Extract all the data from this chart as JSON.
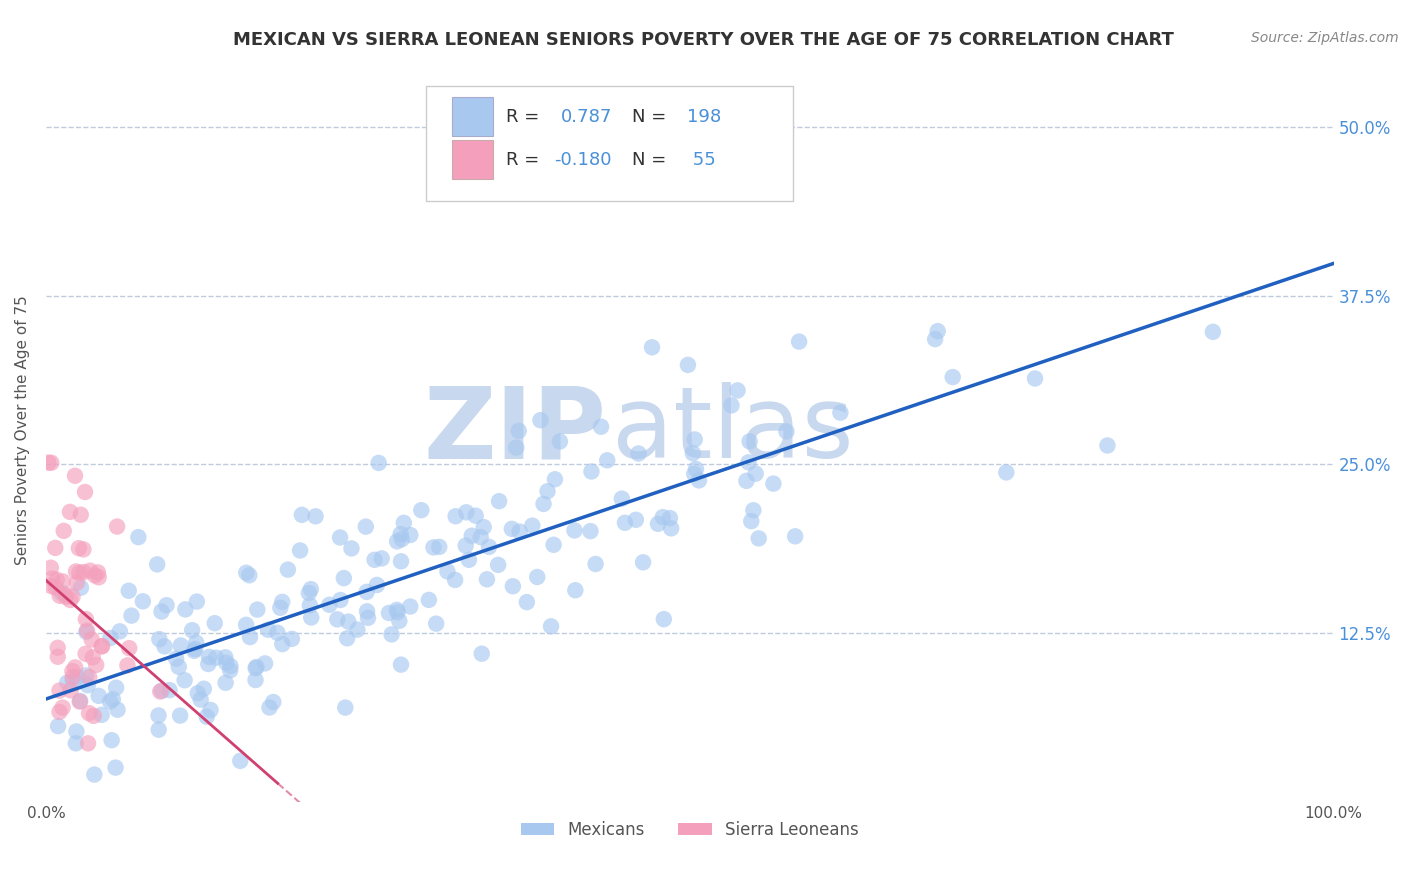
{
  "title": "MEXICAN VS SIERRA LEONEAN SENIORS POVERTY OVER THE AGE OF 75 CORRELATION CHART",
  "source": "Source: ZipAtlas.com",
  "ylabel": "Seniors Poverty Over the Age of 75",
  "xlim": [
    0,
    1.0
  ],
  "ylim": [
    0,
    0.55
  ],
  "yticks": [
    0.0,
    0.125,
    0.25,
    0.375,
    0.5
  ],
  "ytick_labels": [
    "",
    "12.5%",
    "25.0%",
    "37.5%",
    "50.0%"
  ],
  "xticks": [
    0.0,
    0.25,
    0.5,
    0.75,
    1.0
  ],
  "xtick_labels": [
    "0.0%",
    "",
    "",
    "",
    "100.0%"
  ],
  "mexican_R": 0.787,
  "mexican_N": 198,
  "sierraleonean_R": -0.18,
  "sierraleonean_N": 55,
  "mexican_color": "#A8C8F0",
  "sierraleonean_color": "#F4A0BC",
  "trend_mexican_color": "#2060C0",
  "trend_sierraleonean_color": "#D04070",
  "background_color": "#FFFFFF",
  "watermark_zip": "ZIP",
  "watermark_atlas": "atlas",
  "watermark_color": "#C8D8EE",
  "title_color": "#333333",
  "axis_label_color": "#555555",
  "tick_value_color": "#4A90D9",
  "grid_color": "#C0CCDD",
  "grid_style": "--",
  "title_fontsize": 13,
  "ylabel_fontsize": 11,
  "source_fontsize": 10,
  "legend_fontsize": 13,
  "legend_R_color": "#333333",
  "legend_N_color": "#4A90D9"
}
